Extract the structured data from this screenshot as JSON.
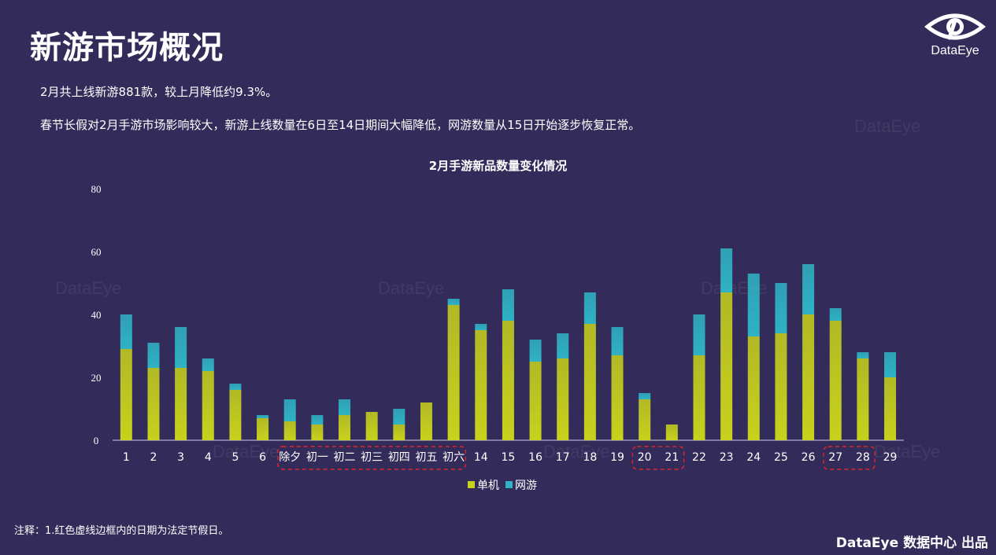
{
  "header": {
    "title": "新游市场概况",
    "logo_text": "DataEye"
  },
  "paragraphs": [
    "2月共上线新游881款，较上月降低约9.3%。",
    "春节长假对2月手游市场影响较大，新游上线数量在6日至14日期间大幅降低，网游数量从15日开始逐步恢复正常。"
  ],
  "watermark": "DataEye",
  "chart_data": {
    "type": "bar",
    "stacked": true,
    "title": "2月手游新品数量变化情况",
    "categories": [
      "1",
      "2",
      "3",
      "4",
      "5",
      "6",
      "除夕",
      "初一",
      "初二",
      "初三",
      "初四",
      "初五",
      "初六",
      "14",
      "15",
      "16",
      "17",
      "18",
      "19",
      "20",
      "21",
      "22",
      "23",
      "24",
      "25",
      "26",
      "27",
      "28",
      "29"
    ],
    "series": [
      {
        "name": "单机",
        "color": "#c7d21c",
        "values": [
          29,
          23,
          23,
          22,
          16,
          7,
          6,
          5,
          8,
          9,
          5,
          12,
          43,
          35,
          38,
          25,
          26,
          37,
          27,
          13,
          5,
          27,
          47,
          33,
          34,
          40,
          38,
          26,
          20
        ]
      },
      {
        "name": "网游",
        "color": "#2fb3c4",
        "values": [
          11,
          8,
          13,
          4,
          2,
          1,
          7,
          3,
          5,
          0,
          5,
          0,
          2,
          2,
          10,
          7,
          8,
          10,
          9,
          2,
          0,
          13,
          14,
          20,
          16,
          16,
          4,
          2,
          8
        ]
      }
    ],
    "ylim": [
      0,
      80
    ],
    "yticks": [
      0,
      20,
      40,
      60,
      80
    ],
    "grid": false,
    "legend_position": "bottom",
    "holiday_groups": [
      [
        "除夕",
        "初一",
        "初二",
        "初三",
        "初四",
        "初五",
        "初六"
      ],
      [
        "20",
        "21"
      ],
      [
        "27",
        "28"
      ]
    ]
  },
  "footer": {
    "note": "注释：1.红色虚线边框内的日期为法定节假日。",
    "credit": "DataEye 数据中心 出品"
  }
}
